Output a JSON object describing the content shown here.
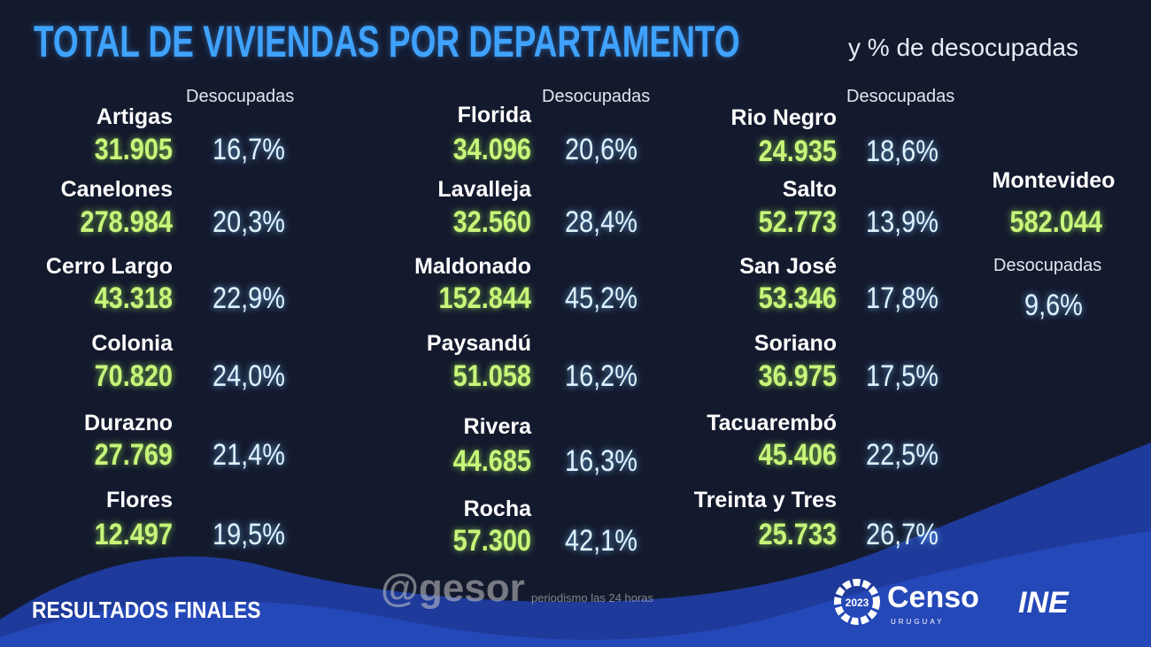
{
  "title": "TOTAL DE VIVIENDAS POR DEPARTAMENTO",
  "subtitle": "y % de desocupadas",
  "column_header": "Desocupadas",
  "colors": {
    "title": "#3fa2ff",
    "number": "#c8f57a",
    "percent": "#dff2ff",
    "background": "#141a2e",
    "wave": "#1f3fa0"
  },
  "columns": [
    [
      {
        "name": "Artigas",
        "total": "31.905",
        "pct": "16,7%"
      },
      {
        "name": "Canelones",
        "total": "278.984",
        "pct": "20,3%"
      },
      {
        "name": "Cerro Largo",
        "total": "43.318",
        "pct": "22,9%"
      },
      {
        "name": "Colonia",
        "total": "70.820",
        "pct": "24,0%"
      },
      {
        "name": "Durazno",
        "total": "27.769",
        "pct": "21,4%"
      },
      {
        "name": "Flores",
        "total": "12.497",
        "pct": "19,5%"
      }
    ],
    [
      {
        "name": "Florida",
        "total": "34.096",
        "pct": "20,6%"
      },
      {
        "name": "Lavalleja",
        "total": "32.560",
        "pct": "28,4%"
      },
      {
        "name": "Maldonado",
        "total": "152.844",
        "pct": "45,2%"
      },
      {
        "name": "Paysandú",
        "total": "51.058",
        "pct": "16,2%"
      },
      {
        "name": "Rivera",
        "total": "44.685",
        "pct": "16,3%"
      },
      {
        "name": "Rocha",
        "total": "57.300",
        "pct": "42,1%"
      }
    ],
    [
      {
        "name": "Rio Negro",
        "total": "24.935",
        "pct": "18,6%"
      },
      {
        "name": "Salto",
        "total": "52.773",
        "pct": "13,9%"
      },
      {
        "name": "San José",
        "total": "53.346",
        "pct": "17,8%"
      },
      {
        "name": "Soriano",
        "total": "36.975",
        "pct": "17,5%"
      },
      {
        "name": "Tacuarembó",
        "total": "45.406",
        "pct": "22,5%"
      },
      {
        "name": "Treinta y Tres",
        "total": "25.733",
        "pct": "26,7%"
      }
    ]
  ],
  "montevideo": {
    "name": "Montevideo",
    "total": "582.044",
    "label": "Desocupadas",
    "pct": "9,6%"
  },
  "footer": "RESULTADOS FINALES",
  "watermark": {
    "brand": "@gesor",
    "tagline": "periodismo las 24 horas"
  },
  "logos": {
    "censo": "Censo",
    "censo_sub": "URUGUAY",
    "censo_year": "2023",
    "ine": "INE"
  }
}
